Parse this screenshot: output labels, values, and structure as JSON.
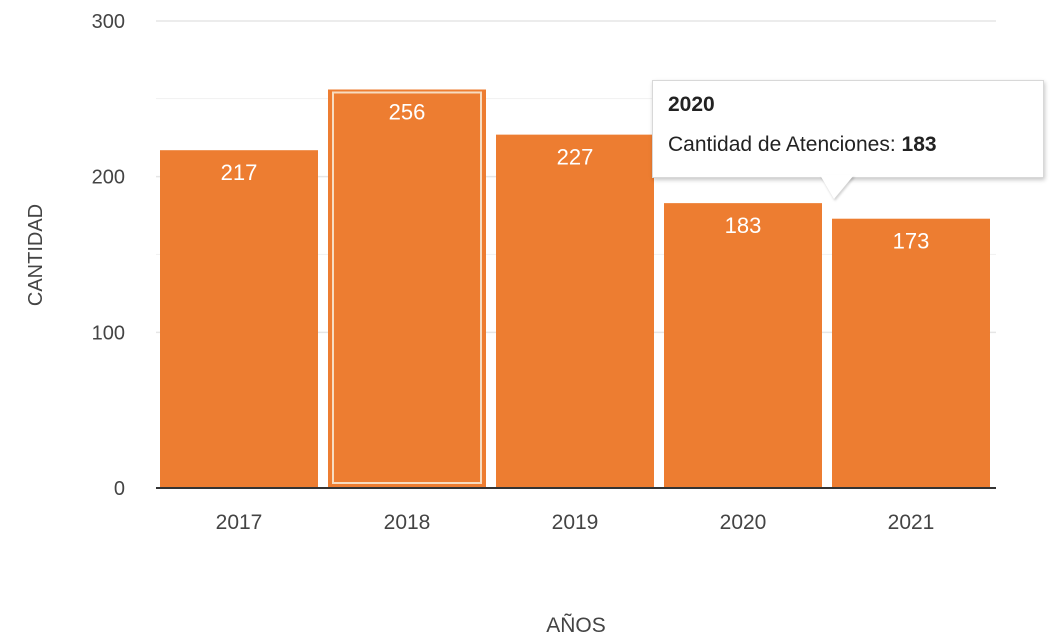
{
  "chart_data": {
    "type": "bar",
    "categories": [
      "2017",
      "2018",
      "2019",
      "2020",
      "2021"
    ],
    "series": [
      {
        "name": "Cantidad de Atenciones",
        "values": [
          217,
          256,
          227,
          183,
          173
        ]
      }
    ],
    "xlabel": "AÑOS",
    "ylabel": "CANTIDAD",
    "ylim": [
      0,
      300
    ],
    "yticks": [
      0,
      100,
      200,
      300
    ],
    "grid": true,
    "data_labels": true,
    "highlighted_category": "2018",
    "bar_color": "#ed7d31",
    "highlight_outline_color": "#f7dcc0",
    "gridline_color": "#e6e6e6",
    "axis_color": "#333333",
    "tick_label_color": "#444444"
  },
  "tooltip": {
    "title": "2020",
    "label": "Cantidad de Atenciones: ",
    "value": "183"
  }
}
